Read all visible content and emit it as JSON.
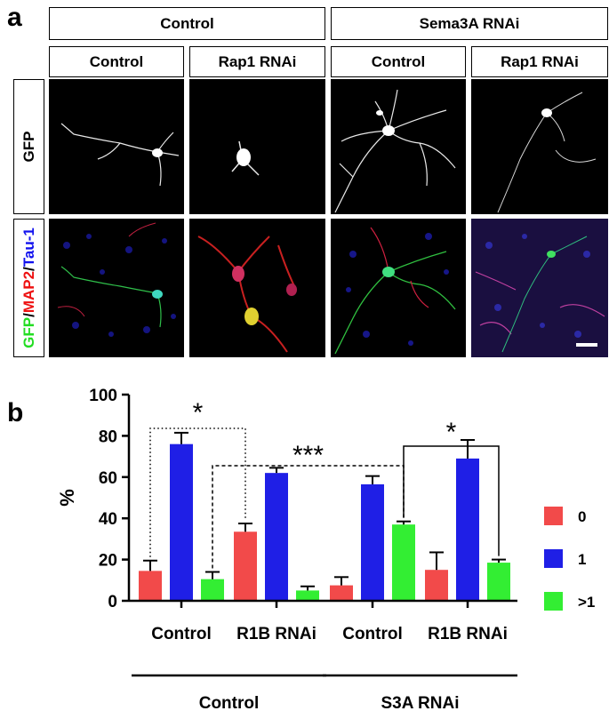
{
  "panel_a": {
    "letter": "a",
    "group_headers": [
      "Control",
      "Sema3A RNAi"
    ],
    "sub_headers": [
      "Control",
      "Rap1 RNAi",
      "Control",
      "Rap1 RNAi"
    ],
    "row_labels": {
      "gfp": "GFP",
      "merge_parts": [
        {
          "text": "GFP",
          "color": "#22dd22"
        },
        {
          "text": "/",
          "color": "#000000"
        },
        {
          "text": "MAP2",
          "color": "#ee1111"
        },
        {
          "text": "/",
          "color": "#000000"
        },
        {
          "text": "Tau-1",
          "color": "#1111ee"
        }
      ]
    }
  },
  "panel_b": {
    "letter": "b"
  },
  "chart_data": {
    "type": "bar",
    "ylabel": "%",
    "ylim": [
      0,
      100
    ],
    "yticks": [
      0,
      20,
      40,
      60,
      80,
      100
    ],
    "categories": [
      "Control",
      "R1B RNAi",
      "Control",
      "R1B RNAi"
    ],
    "group_labels": [
      "Control",
      "S3A RNAi"
    ],
    "series": [
      {
        "name": "0",
        "color": "#f24a4a",
        "values": [
          14.5,
          33.5,
          7.5,
          15
        ],
        "errors": [
          5,
          4,
          4,
          8.5
        ]
      },
      {
        "name": "1",
        "color": "#1f1fe6",
        "values": [
          76,
          62,
          56.5,
          69
        ],
        "errors": [
          5.5,
          2.5,
          4,
          9
        ]
      },
      {
        "name": ">1",
        "color": "#33ee33",
        "values": [
          10.5,
          5,
          37,
          18.5
        ],
        "errors": [
          3.5,
          2,
          1.5,
          1.5
        ]
      }
    ],
    "significance": [
      {
        "label": "*",
        "style": "dotted"
      },
      {
        "label": "***",
        "style": "dashed"
      },
      {
        "label": "*",
        "style": "solid"
      }
    ],
    "legend": "right",
    "grid": false
  }
}
